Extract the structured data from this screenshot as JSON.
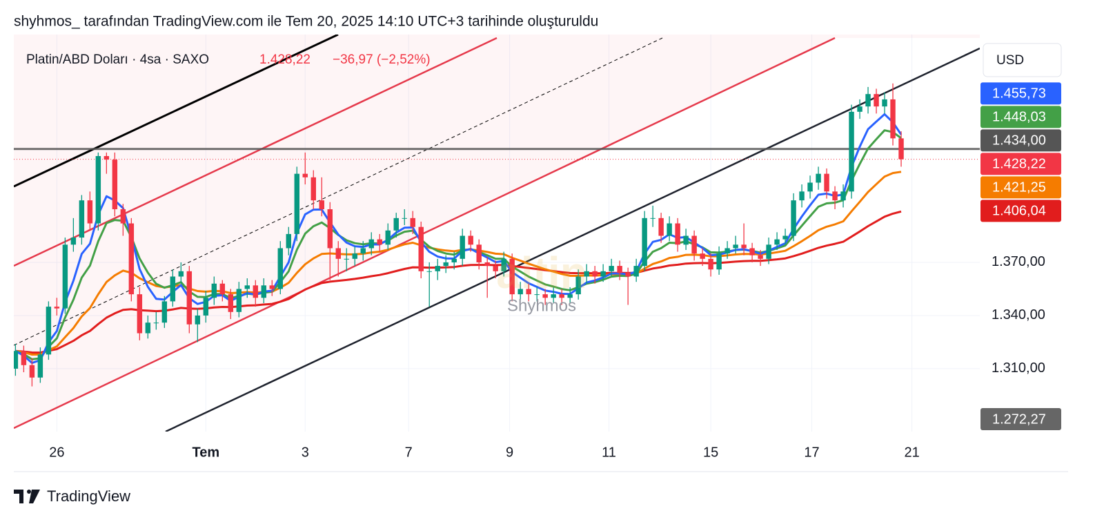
{
  "header": "shyhmos_ tarafından TradingView.com ile Tem 20, 2025 14:10 UTC+3 tarihinde oluşturuldu",
  "watermark": "Shyhmos",
  "footer": "TradingView",
  "chart_data": {
    "type": "candlestick",
    "title": "Platin/ABD Doları · 4sa · SAXO",
    "last_price": "1.428,22",
    "change": "−36,97 (−2,52%)",
    "currency": "USD",
    "up_color": "#089981",
    "down_color": "#f23645",
    "xlim": [
      -0.2,
      116.5
    ],
    "ylim": [
      1274.5,
      1498.6
    ],
    "xticks": [
      {
        "value": 5,
        "label": "26"
      },
      {
        "value": 23,
        "label": "Tem"
      },
      {
        "value": 35,
        "label": "3"
      },
      {
        "value": 47.5,
        "label": "7"
      },
      {
        "value": 59.7,
        "label": "9"
      },
      {
        "value": 71.7,
        "label": "11"
      },
      {
        "value": 84,
        "label": "15"
      },
      {
        "value": 96.2,
        "label": "17"
      },
      {
        "value": 108.3,
        "label": "21"
      }
    ],
    "yticks": [
      {
        "value": 1370,
        "label": "1.370,00"
      },
      {
        "value": 1340,
        "label": "1.340,00"
      },
      {
        "value": 1310,
        "label": "1.310,00"
      }
    ],
    "price_labels": [
      {
        "value": 1455.73,
        "label": "1.455,73",
        "color": "#2962ff"
      },
      {
        "value": 1448.03,
        "label": "1.448,03",
        "color": "#43a047"
      },
      {
        "value": 1434.0,
        "label": "1.434,00",
        "color": "#555555",
        "line": "solid"
      },
      {
        "value": 1428.22,
        "label": "1.428,22",
        "color": "#f23645",
        "line": "dotted"
      },
      {
        "value": 1421.25,
        "label": "1.421,25",
        "color": "#f57c00"
      },
      {
        "value": 1406.04,
        "label": "1.406,04",
        "color": "#e11d1d"
      },
      {
        "value": 1272.27,
        "label": "1.272,27",
        "color": "#666666"
      }
    ],
    "candles": [
      [
        1310,
        1324,
        1306,
        1320
      ],
      [
        1320,
        1323,
        1308,
        1312
      ],
      [
        1312,
        1316,
        1300,
        1305
      ],
      [
        1305,
        1322,
        1302,
        1318
      ],
      [
        1318,
        1348,
        1315,
        1345
      ],
      [
        1345,
        1350,
        1340,
        1344
      ],
      [
        1344,
        1384,
        1341,
        1380
      ],
      [
        1380,
        1395,
        1376,
        1384
      ],
      [
        1384,
        1408,
        1380,
        1405
      ],
      [
        1405,
        1410,
        1388,
        1392
      ],
      [
        1392,
        1432,
        1388,
        1430
      ],
      [
        1430,
        1432,
        1420,
        1428
      ],
      [
        1428,
        1432,
        1396,
        1400
      ],
      [
        1400,
        1403,
        1385,
        1392
      ],
      [
        1392,
        1395,
        1348,
        1352
      ],
      [
        1352,
        1356,
        1326,
        1330
      ],
      [
        1330,
        1340,
        1327,
        1336
      ],
      [
        1336,
        1342,
        1332,
        1336
      ],
      [
        1336,
        1351,
        1333,
        1348
      ],
      [
        1348,
        1366,
        1345,
        1362
      ],
      [
        1362,
        1370,
        1358,
        1365
      ],
      [
        1365,
        1368,
        1330,
        1335
      ],
      [
        1335,
        1344,
        1325,
        1340
      ],
      [
        1340,
        1354,
        1336,
        1350
      ],
      [
        1350,
        1362,
        1346,
        1358
      ],
      [
        1358,
        1360,
        1348,
        1352
      ],
      [
        1352,
        1355,
        1338,
        1342
      ],
      [
        1342,
        1359,
        1339,
        1355
      ],
      [
        1355,
        1361,
        1350,
        1357
      ],
      [
        1357,
        1360,
        1345,
        1350
      ],
      [
        1350,
        1361,
        1347,
        1357
      ],
      [
        1357,
        1360,
        1351,
        1355
      ],
      [
        1355,
        1382,
        1352,
        1378
      ],
      [
        1378,
        1390,
        1374,
        1386
      ],
      [
        1386,
        1424,
        1382,
        1420
      ],
      [
        1420,
        1432,
        1414,
        1418
      ],
      [
        1418,
        1422,
        1400,
        1405
      ],
      [
        1405,
        1418,
        1396,
        1400
      ],
      [
        1400,
        1404,
        1360,
        1378
      ],
      [
        1378,
        1382,
        1362,
        1372
      ],
      [
        1372,
        1378,
        1365,
        1372
      ],
      [
        1372,
        1379,
        1368,
        1375
      ],
      [
        1375,
        1382,
        1371,
        1378
      ],
      [
        1378,
        1387,
        1374,
        1383
      ],
      [
        1383,
        1386,
        1376,
        1380
      ],
      [
        1380,
        1392,
        1377,
        1388
      ],
      [
        1388,
        1398,
        1384,
        1395
      ],
      [
        1395,
        1400,
        1391,
        1395
      ],
      [
        1395,
        1399,
        1386,
        1390
      ],
      [
        1390,
        1393,
        1361,
        1365
      ],
      [
        1365,
        1370,
        1345,
        1365
      ],
      [
        1365,
        1372,
        1360,
        1368
      ],
      [
        1368,
        1374,
        1364,
        1370
      ],
      [
        1370,
        1376,
        1366,
        1372
      ],
      [
        1372,
        1389,
        1368,
        1385
      ],
      [
        1385,
        1388,
        1376,
        1380
      ],
      [
        1380,
        1383,
        1366,
        1370
      ],
      [
        1370,
        1373,
        1350,
        1368
      ],
      [
        1368,
        1371,
        1361,
        1365
      ],
      [
        1365,
        1376,
        1362,
        1372
      ],
      [
        1372,
        1375,
        1348,
        1352
      ],
      [
        1352,
        1359,
        1349,
        1355
      ],
      [
        1355,
        1358,
        1348,
        1352
      ],
      [
        1352,
        1356,
        1348,
        1352
      ],
      [
        1352,
        1355,
        1346,
        1350
      ],
      [
        1350,
        1356,
        1347,
        1352
      ],
      [
        1352,
        1355,
        1346,
        1350
      ],
      [
        1350,
        1356,
        1347,
        1352
      ],
      [
        1352,
        1366,
        1349,
        1362
      ],
      [
        1362,
        1369,
        1358,
        1365
      ],
      [
        1365,
        1368,
        1358,
        1362
      ],
      [
        1362,
        1369,
        1359,
        1365
      ],
      [
        1365,
        1372,
        1362,
        1368
      ],
      [
        1368,
        1371,
        1360,
        1364
      ],
      [
        1364,
        1367,
        1346,
        1362
      ],
      [
        1362,
        1372,
        1359,
        1368
      ],
      [
        1368,
        1399,
        1365,
        1395
      ],
      [
        1395,
        1402,
        1390,
        1395
      ],
      [
        1395,
        1398,
        1381,
        1385
      ],
      [
        1385,
        1396,
        1382,
        1392
      ],
      [
        1392,
        1395,
        1376,
        1380
      ],
      [
        1380,
        1389,
        1377,
        1385
      ],
      [
        1385,
        1388,
        1371,
        1375
      ],
      [
        1375,
        1378,
        1368,
        1372
      ],
      [
        1372,
        1375,
        1362,
        1366
      ],
      [
        1366,
        1379,
        1363,
        1375
      ],
      [
        1375,
        1382,
        1372,
        1378
      ],
      [
        1378,
        1385,
        1375,
        1380
      ],
      [
        1380,
        1392,
        1374,
        1378
      ],
      [
        1378,
        1381,
        1370,
        1374
      ],
      [
        1374,
        1377,
        1368,
        1372
      ],
      [
        1372,
        1384,
        1369,
        1380
      ],
      [
        1380,
        1387,
        1377,
        1383
      ],
      [
        1383,
        1389,
        1380,
        1385
      ],
      [
        1385,
        1409,
        1382,
        1405
      ],
      [
        1405,
        1414,
        1401,
        1410
      ],
      [
        1410,
        1419,
        1406,
        1415
      ],
      [
        1415,
        1424,
        1411,
        1420
      ],
      [
        1420,
        1423,
        1406,
        1410
      ],
      [
        1410,
        1413,
        1400,
        1405
      ],
      [
        1405,
        1414,
        1401,
        1410
      ],
      [
        1410,
        1459,
        1406,
        1455
      ],
      [
        1455,
        1462,
        1451,
        1458
      ],
      [
        1458,
        1469,
        1454,
        1465
      ],
      [
        1465,
        1468,
        1454,
        1458
      ],
      [
        1458,
        1466,
        1454,
        1462
      ],
      [
        1462,
        1471,
        1436,
        1440
      ],
      [
        1440,
        1444,
        1424,
        1428.22
      ]
    ]
  }
}
